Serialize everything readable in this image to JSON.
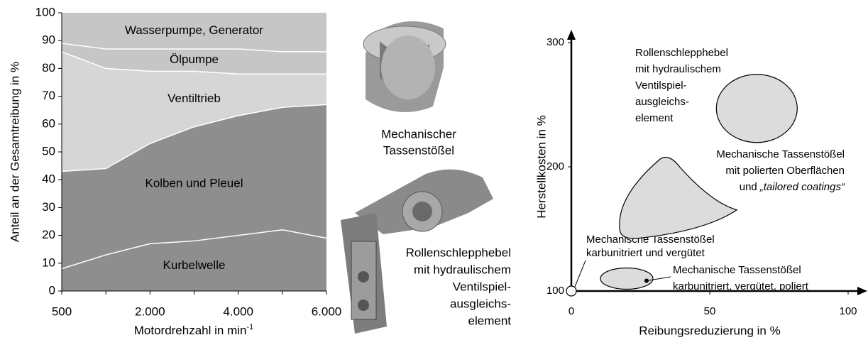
{
  "chart_data": [
    {
      "type": "stacked-area",
      "x_label": "Motordrehzahl in min",
      "x_label_exponent": "-1",
      "y_label": "Anteil an der Gesamtreibung in %",
      "categories": [
        "500",
        null,
        "2.000",
        null,
        "4.000",
        null,
        "6.000"
      ],
      "ylim": [
        0,
        100
      ],
      "yticks": [
        0,
        10,
        20,
        30,
        40,
        50,
        60,
        70,
        80,
        90,
        100
      ],
      "series": [
        {
          "name": "Kurbelwelle",
          "color": "#8e8e8e",
          "values": [
            8,
            13,
            17,
            18,
            20,
            22,
            19
          ]
        },
        {
          "name": "Kolben und Pleuel",
          "color": "#8e8e8e",
          "values": [
            35,
            31,
            36,
            41,
            43,
            44,
            48
          ]
        },
        {
          "name": "Ventiltrieb",
          "color": "#d6d6d6",
          "values": [
            43,
            36,
            26,
            20,
            15,
            12,
            11
          ]
        },
        {
          "name": "Ölpumpe",
          "color": "#c6c6c6",
          "values": [
            3,
            7,
            8,
            8,
            9,
            8,
            8
          ]
        },
        {
          "name": "Wasserpumpe, Generator",
          "color": "#c6c6c6",
          "values": [
            11,
            13,
            13,
            13,
            13,
            14,
            14
          ]
        }
      ]
    },
    {
      "type": "region-scatter",
      "x_label": "Reibungsreduzierung in %",
      "y_label": "Herstellkosten in %",
      "xlim": [
        0,
        100
      ],
      "xticks": [
        0,
        50,
        100
      ],
      "ylim": [
        100,
        300
      ],
      "yticks": [
        100,
        200,
        300
      ],
      "points": [
        {
          "x": 0,
          "y": 100,
          "shape": "circle",
          "label": [
            "Mechanische Tassenstößel",
            "karbunitriert und vergütet"
          ]
        },
        {
          "x": 20,
          "y": 110,
          "shape": "ellipse",
          "label": [
            "Mechanische Tassenstößel",
            "karbunitriert, vergütet, poliert"
          ]
        },
        {
          "x": 38,
          "y": 171,
          "shape": "blob",
          "label": [
            "Mechanische Tassenstößel",
            "mit polierten Oberflächen",
            "und"
          ],
          "label_italic": "„tailored coatings“"
        },
        {
          "x": 67,
          "y": 247,
          "shape": "ellipse-large",
          "label": [
            "Rollenschlepphebel",
            "mit hydraulischem",
            "Ventilspiel-",
            "ausgleichs-",
            "element"
          ]
        }
      ]
    }
  ],
  "photos": [
    {
      "caption": [
        "Mechanischer",
        "Tassenstößel"
      ]
    },
    {
      "caption": [
        "Rollenschlepphebel",
        "mit hydraulischem",
        "Ventilspiel-",
        "ausgleichs-",
        "element"
      ]
    }
  ]
}
